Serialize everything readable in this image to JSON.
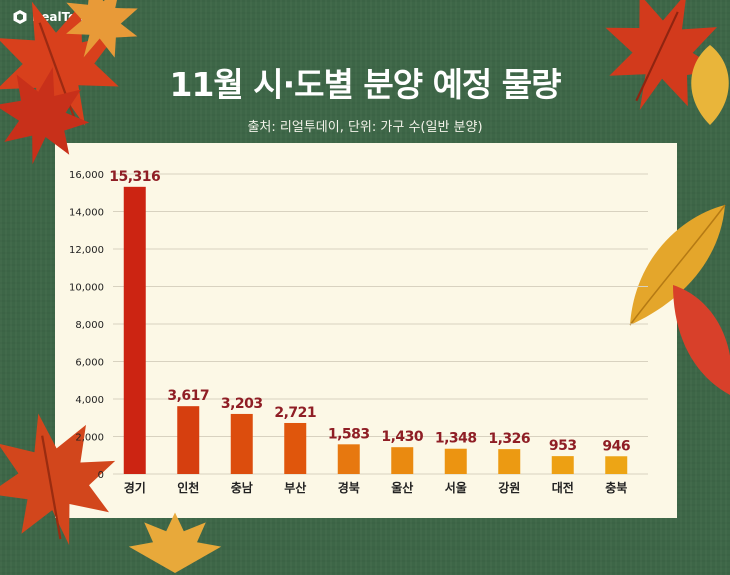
{
  "brand": {
    "name": "RealToday"
  },
  "header": {
    "title": "11월 시·도별 분양 예정 물량",
    "subtitle": "출처: 리얼투데이, 단위: 가구 수(일반 분양)"
  },
  "chart_data": {
    "type": "bar",
    "title": "11월 시·도별 분양 예정 물량",
    "subtitle": "출처: 리얼투데이, 단위: 가구 수(일반 분양)",
    "categories": [
      "경기",
      "인천",
      "충남",
      "부산",
      "경북",
      "울산",
      "서울",
      "강원",
      "대전",
      "충북"
    ],
    "values": [
      15316,
      3617,
      3203,
      2721,
      1583,
      1430,
      1348,
      1326,
      953,
      946
    ],
    "value_labels": [
      "15,316",
      "3,617",
      "3,203",
      "2,721",
      "1,583",
      "1,430",
      "1,348",
      "1,326",
      "953",
      "946"
    ],
    "y_ticks": [
      "0",
      "2,000",
      "4,000",
      "6,000",
      "8,000",
      "10,000",
      "12,000",
      "14,000",
      "16,000"
    ],
    "ylim": [
      0,
      16000
    ],
    "grid": true,
    "colors": {
      "bars": [
        "#cc2412",
        "#d63f0f",
        "#dc4d0d",
        "#e0560c",
        "#e7780f",
        "#ea8a10",
        "#ec9411",
        "#ec9a12",
        "#eda013",
        "#eda515"
      ],
      "value_label": "#8f1e25",
      "axis_text": "#222222",
      "grid": "#d8d2c0"
    }
  },
  "theme": {
    "background": "#3d6647",
    "panel": "#fcf8e6"
  }
}
